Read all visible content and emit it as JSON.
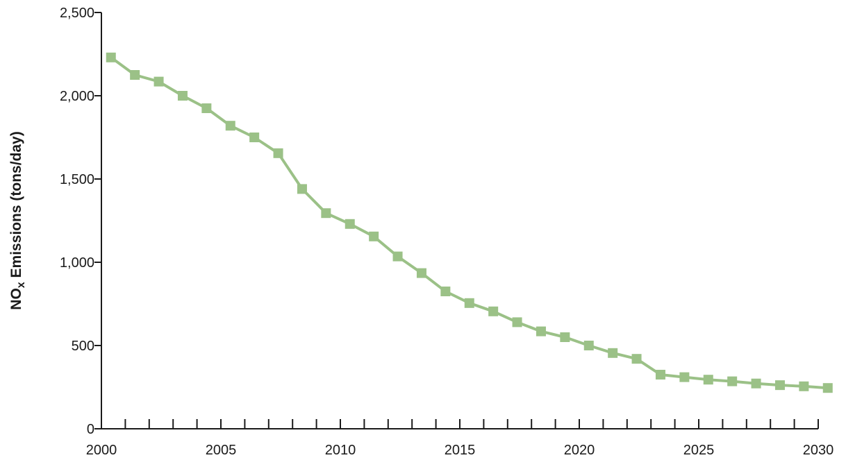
{
  "chart_data": {
    "type": "line",
    "title": "",
    "xlabel": "",
    "ylabel": {
      "prefix": "NO",
      "subscript": "x",
      "suffix": " Emissions (tons/day)"
    },
    "xlim": [
      2000,
      2030
    ],
    "ylim": [
      0,
      2500
    ],
    "x_ticks": [
      2000,
      2005,
      2010,
      2015,
      2020,
      2025,
      2030
    ],
    "y_ticks": [
      0,
      500,
      1000,
      1500,
      2000,
      2500
    ],
    "x_tick_labels": [
      "2000",
      "2005",
      "2010",
      "2015",
      "2020",
      "2025",
      "2030"
    ],
    "y_tick_labels": [
      "0",
      "500",
      "1,000",
      "1,500",
      "2,000",
      "2,500"
    ],
    "grid": false,
    "legend": "none",
    "series": [
      {
        "color": "#9bc187",
        "marker": "square",
        "points": [
          [
            2000.4,
            2230
          ],
          [
            2001.4,
            2125
          ],
          [
            2002.4,
            2085
          ],
          [
            2003.4,
            2000
          ],
          [
            2004.4,
            1925
          ],
          [
            2005.4,
            1820
          ],
          [
            2006.4,
            1750
          ],
          [
            2007.4,
            1655
          ],
          [
            2008.4,
            1440
          ],
          [
            2009.4,
            1295
          ],
          [
            2010.4,
            1230
          ],
          [
            2011.4,
            1155
          ],
          [
            2012.4,
            1035
          ],
          [
            2013.4,
            935
          ],
          [
            2014.4,
            825
          ],
          [
            2015.4,
            755
          ],
          [
            2016.4,
            705
          ],
          [
            2017.4,
            640
          ],
          [
            2018.4,
            585
          ],
          [
            2019.4,
            550
          ],
          [
            2020.4,
            500
          ],
          [
            2021.4,
            455
          ],
          [
            2022.4,
            420
          ],
          [
            2023.4,
            325
          ],
          [
            2024.4,
            310
          ],
          [
            2025.4,
            295
          ],
          [
            2026.4,
            285
          ],
          [
            2027.4,
            272
          ],
          [
            2028.4,
            262
          ],
          [
            2029.4,
            255
          ],
          [
            2030.4,
            245
          ]
        ]
      }
    ]
  }
}
